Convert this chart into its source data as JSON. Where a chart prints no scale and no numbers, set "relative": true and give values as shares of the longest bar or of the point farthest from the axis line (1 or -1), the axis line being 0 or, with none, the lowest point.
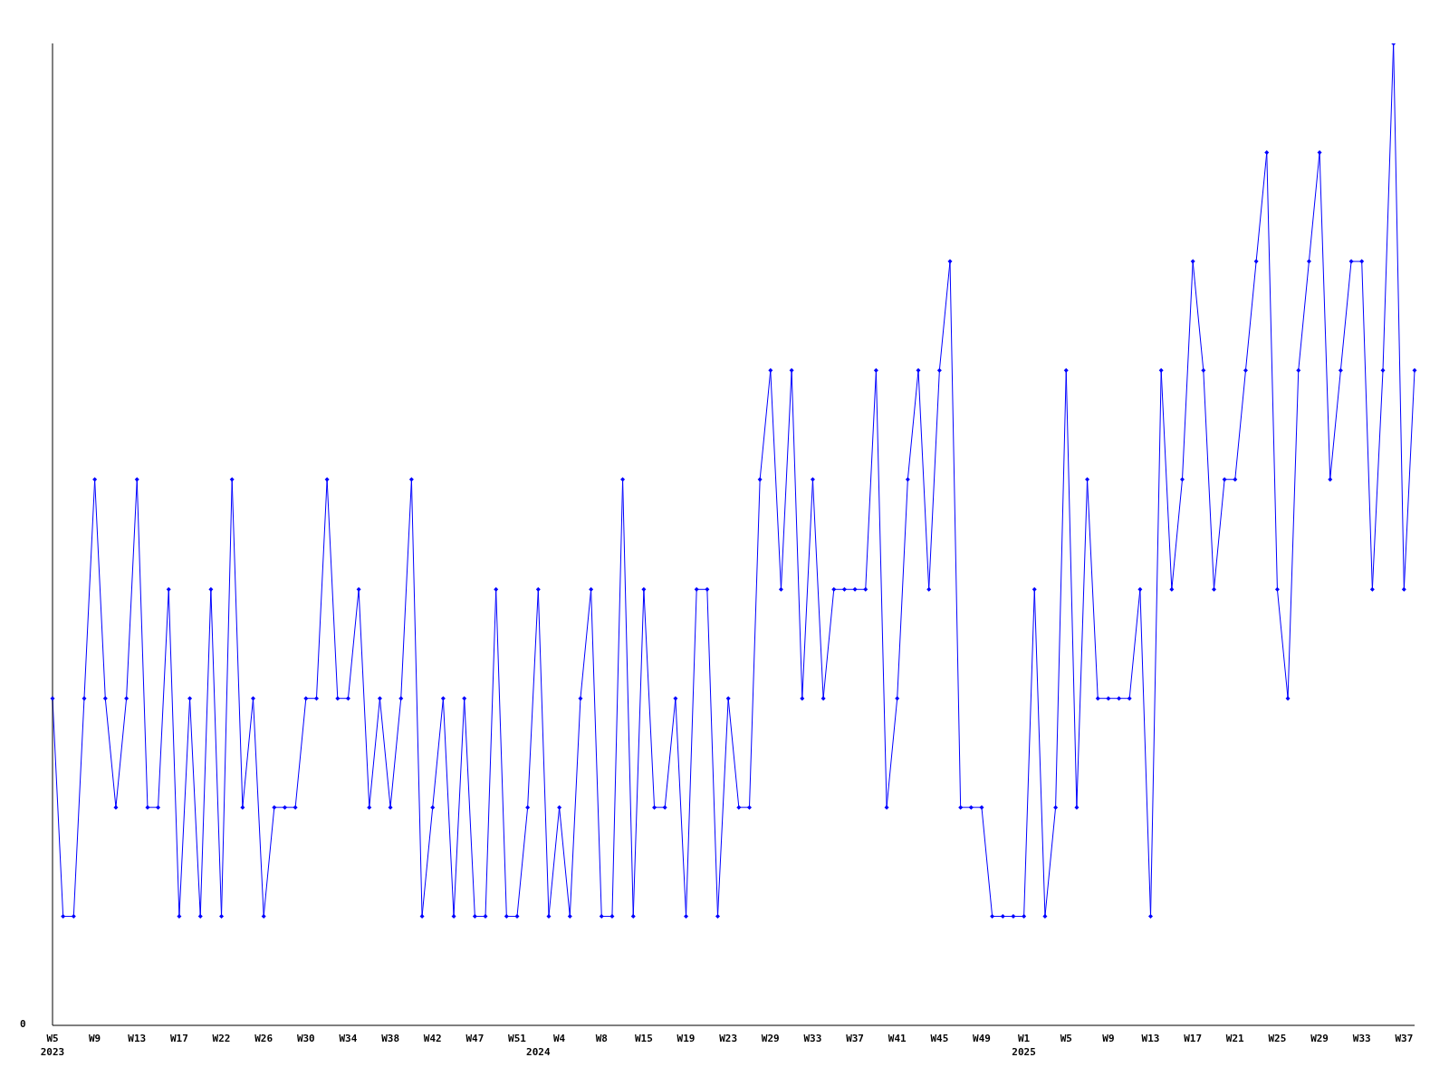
{
  "chart_data": {
    "type": "line",
    "relative": true,
    "grid": false,
    "legend": false,
    "marker": "diamond",
    "line_style": "solid",
    "annotations": [
      "0"
    ],
    "categories": [
      "W5\n2023",
      null,
      null,
      null,
      "W9",
      null,
      null,
      null,
      "W13",
      null,
      null,
      null,
      "W17",
      null,
      null,
      null,
      "W22",
      null,
      null,
      null,
      "W26",
      null,
      null,
      null,
      "W30",
      null,
      null,
      null,
      "W34",
      null,
      null,
      null,
      "W38",
      null,
      null,
      null,
      "W42",
      null,
      null,
      null,
      "W47",
      null,
      null,
      null,
      "W51",
      null,
      "\n2024",
      null,
      "W4",
      null,
      null,
      null,
      "W8",
      null,
      null,
      null,
      "W15",
      null,
      null,
      null,
      "W19",
      null,
      null,
      null,
      "W23",
      null,
      null,
      null,
      "W29",
      null,
      null,
      null,
      "W33",
      null,
      null,
      null,
      "W37",
      null,
      null,
      null,
      "W41",
      null,
      null,
      null,
      "W45",
      null,
      null,
      null,
      "W49",
      null,
      null,
      null,
      "W1\n2025",
      null,
      null,
      null,
      "W5",
      null,
      null,
      null,
      "W9",
      null,
      null,
      null,
      "W13",
      null,
      null,
      null,
      "W17",
      null,
      null,
      null,
      "W21",
      null,
      null,
      null,
      "W25",
      null,
      null,
      null,
      "W29",
      null,
      null,
      null,
      "W33",
      null,
      null,
      null,
      "W37",
      null
    ],
    "series": [
      {
        "color": "#0000ff",
        "values": [
          0.333,
          0.111,
          0.111,
          0.333,
          0.556,
          0.333,
          0.222,
          0.333,
          0.556,
          0.222,
          0.222,
          0.444,
          0.111,
          0.333,
          0.111,
          0.444,
          0.111,
          0.556,
          0.222,
          0.333,
          0.111,
          0.222,
          0.222,
          0.222,
          0.333,
          0.333,
          0.556,
          0.333,
          0.333,
          0.444,
          0.222,
          0.333,
          0.222,
          0.333,
          0.556,
          0.111,
          0.222,
          0.333,
          0.111,
          0.333,
          0.111,
          0.111,
          0.444,
          0.111,
          0.111,
          0.222,
          0.444,
          0.111,
          0.222,
          0.111,
          0.333,
          0.444,
          0.111,
          0.111,
          0.556,
          0.111,
          0.444,
          0.222,
          0.222,
          0.333,
          0.111,
          0.444,
          0.444,
          0.111,
          0.333,
          0.222,
          0.222,
          0.556,
          0.667,
          0.444,
          0.667,
          0.333,
          0.556,
          0.333,
          0.444,
          0.444,
          0.444,
          0.444,
          0.667,
          0.222,
          0.333,
          0.556,
          0.667,
          0.444,
          0.667,
          0.778,
          0.222,
          0.222,
          0.222,
          0.111,
          0.111,
          0.111,
          0.111,
          0.444,
          0.111,
          0.222,
          0.667,
          0.222,
          0.556,
          0.333,
          0.333,
          0.333,
          0.333,
          0.444,
          0.111,
          0.667,
          0.444,
          0.556,
          0.778,
          0.667,
          0.444,
          0.556,
          0.556,
          0.667,
          0.778,
          0.889,
          0.444,
          0.333,
          0.667,
          0.778,
          0.889,
          0.556,
          0.667,
          0.778,
          0.778,
          0.444,
          0.667,
          1,
          0.444,
          0.667
        ]
      }
    ]
  }
}
